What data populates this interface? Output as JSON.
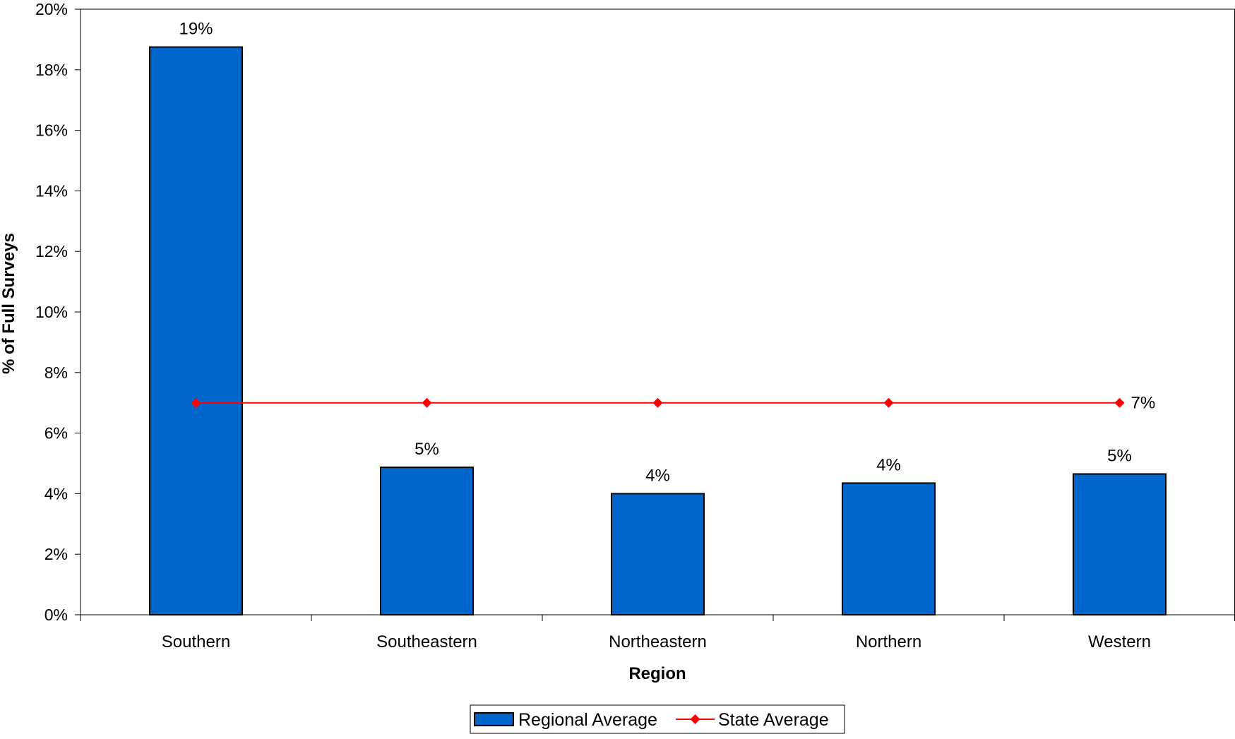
{
  "chart_data": {
    "type": "bar",
    "title": "",
    "xlabel": "Region",
    "ylabel": "% of Full Surveys",
    "categories": [
      "Southern",
      "Southeastern",
      "Northeastern",
      "Northern",
      "Western"
    ],
    "ylim": [
      0,
      20
    ],
    "yticks": [
      0,
      2,
      4,
      6,
      8,
      10,
      12,
      14,
      16,
      18,
      20
    ],
    "ytick_labels": [
      "0%",
      "2%",
      "4%",
      "6%",
      "8%",
      "10%",
      "12%",
      "14%",
      "16%",
      "18%",
      "20%"
    ],
    "grid": false,
    "legend_position": "bottom",
    "series": [
      {
        "name": "Regional Average",
        "kind": "bar",
        "color": "#0066cc",
        "values": [
          18.75,
          4.87,
          4.0,
          4.35,
          4.65
        ],
        "data_labels": [
          "19%",
          "5%",
          "4%",
          "4%",
          "5%"
        ]
      },
      {
        "name": "State Average",
        "kind": "line",
        "color": "#ff0000",
        "values": [
          7.0,
          7.0,
          7.0,
          7.0,
          7.0
        ],
        "end_label": "7%"
      }
    ]
  }
}
